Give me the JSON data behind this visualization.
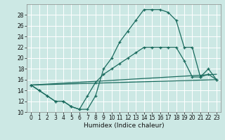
{
  "xlabel": "Humidex (Indice chaleur)",
  "xlim": [
    -0.5,
    23.5
  ],
  "ylim": [
    10,
    30
  ],
  "yticks": [
    10,
    12,
    14,
    16,
    18,
    20,
    22,
    24,
    26,
    28
  ],
  "xticks": [
    0,
    1,
    2,
    3,
    4,
    5,
    6,
    7,
    8,
    9,
    10,
    11,
    12,
    13,
    14,
    15,
    16,
    17,
    18,
    19,
    20,
    21,
    22,
    23
  ],
  "bg_color": "#cce8e4",
  "grid_color": "#ffffff",
  "line_color": "#1a6b5e",
  "lines": [
    {
      "x": [
        0,
        1,
        2,
        3,
        4,
        5,
        6,
        7,
        8,
        9,
        10,
        11,
        12,
        13,
        14,
        15,
        16,
        17,
        18,
        19,
        20,
        21,
        22,
        23
      ],
      "y": [
        15,
        14,
        13,
        12,
        12,
        11,
        10.5,
        10.5,
        13,
        18,
        20,
        23,
        25,
        27,
        29,
        29,
        29,
        28.5,
        27,
        22,
        22,
        16.5,
        18,
        16
      ],
      "marker": true
    },
    {
      "x": [
        0,
        1,
        2,
        3,
        4,
        5,
        6,
        7,
        8,
        9,
        10,
        11,
        12,
        13,
        14,
        15,
        16,
        17,
        18,
        19,
        20,
        21,
        22,
        23
      ],
      "y": [
        15,
        14,
        13,
        12,
        12,
        11,
        10.5,
        13,
        15.5,
        17,
        18,
        19,
        20,
        21,
        22,
        22,
        22,
        22,
        22,
        19.5,
        16.5,
        16.5,
        17,
        16
      ],
      "marker": true
    },
    {
      "x": [
        0,
        23
      ],
      "y": [
        15,
        17
      ],
      "marker": false
    },
    {
      "x": [
        0,
        23
      ],
      "y": [
        15,
        16
      ],
      "marker": false
    }
  ]
}
